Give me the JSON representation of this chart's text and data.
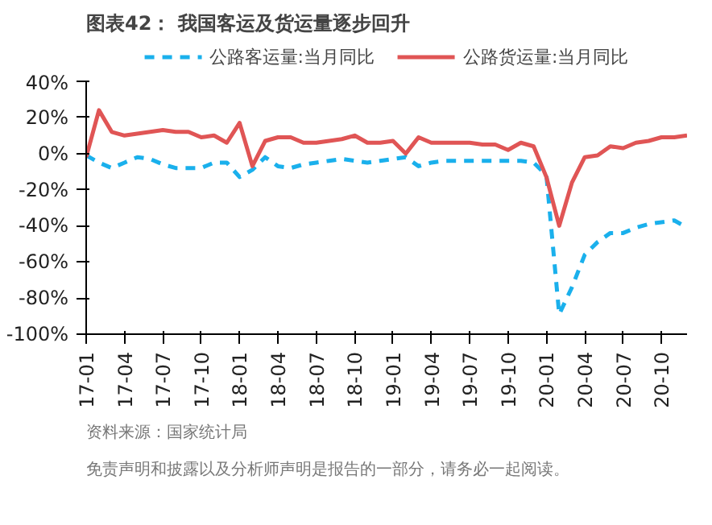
{
  "chart_data": {
    "type": "line",
    "title": "图表42：  我国客运及货运量逐步回升",
    "categories": [
      "17-01",
      null,
      null,
      "17-04",
      null,
      null,
      "17-07",
      null,
      null,
      "17-10",
      null,
      null,
      "18-01",
      null,
      null,
      "18-04",
      null,
      null,
      "18-07",
      null,
      null,
      "18-10",
      null,
      null,
      "19-01",
      null,
      null,
      "19-04",
      null,
      null,
      "19-07",
      null,
      null,
      "19-10",
      null,
      null,
      "20-01",
      null,
      null,
      "20-04",
      null,
      null,
      "20-07",
      null,
      null,
      "20-10",
      null,
      null
    ],
    "series": [
      {
        "name": "公路客运量:当月同比",
        "color": "#1ab0ec",
        "line_style": "dashed",
        "values": [
          -1,
          -5,
          -8,
          -5,
          -2,
          -3,
          -6,
          -8,
          -8,
          -8,
          -5,
          -5,
          -13,
          -9,
          -2,
          -7,
          -8,
          -6,
          -5,
          -4,
          -3,
          -4,
          -5,
          -4,
          -3,
          -2,
          -7,
          -5,
          -4,
          -4,
          -4,
          -4,
          -4,
          -4,
          -4,
          -5,
          -12,
          -89,
          -74,
          -56,
          -49,
          -44,
          -44,
          -41,
          -39,
          -38,
          -37,
          -41
        ]
      },
      {
        "name": "公路货运量:当月同比",
        "color": "#e05555",
        "line_style": "solid",
        "values": [
          -2,
          24,
          12,
          10,
          11,
          12,
          13,
          12,
          12,
          9,
          10,
          6,
          17,
          -7,
          7,
          9,
          9,
          6,
          6,
          7,
          8,
          10,
          6,
          6,
          7,
          0,
          9,
          6,
          6,
          6,
          6,
          5,
          5,
          2,
          6,
          4,
          -13,
          -40,
          -16,
          -2,
          -1,
          4,
          3,
          6,
          7,
          9,
          9,
          10
        ]
      }
    ],
    "ylim": [
      -100,
      40
    ],
    "yticks": [
      {
        "value": 40,
        "label": "40%"
      },
      {
        "value": 20,
        "label": "20%"
      },
      {
        "value": 0,
        "label": "0%"
      },
      {
        "value": -20,
        "label": "-20%"
      },
      {
        "value": -40,
        "label": "-40%"
      },
      {
        "value": -60,
        "label": "-60%"
      },
      {
        "value": -80,
        "label": "-80%"
      },
      {
        "value": -100,
        "label": "-100%"
      }
    ],
    "legend": "top",
    "grid": false,
    "annotations": [
      "资料来源：国家统计局",
      "免责声明和披露以及分析师声明是报告的一部分，请务必一起阅读。"
    ]
  }
}
